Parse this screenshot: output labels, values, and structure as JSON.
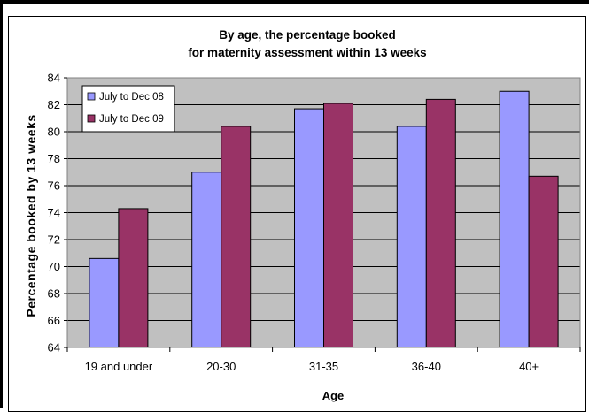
{
  "chart_data": {
    "type": "bar",
    "title_line1": "By age, the percentage booked",
    "title_line2": "for maternity assessment within 13 weeks",
    "xlabel": "Age",
    "ylabel": "Percentage booked by 13 weeks",
    "categories": [
      "19 and under",
      "20-30",
      "31-35",
      "36-40",
      "40+"
    ],
    "series": [
      {
        "name": "July to Dec 08",
        "color": "#9999ff",
        "values": [
          70.6,
          77.0,
          81.7,
          80.4,
          83.0
        ]
      },
      {
        "name": "July to Dec 09",
        "color": "#993366",
        "values": [
          74.3,
          80.4,
          82.1,
          82.4,
          76.7
        ]
      }
    ],
    "ylim": [
      64,
      84
    ],
    "yticks": [
      64,
      66,
      68,
      70,
      72,
      74,
      76,
      78,
      80,
      82,
      84
    ],
    "grid": true,
    "plot_background": "#c0c0c0",
    "legend_position": "top-left"
  }
}
